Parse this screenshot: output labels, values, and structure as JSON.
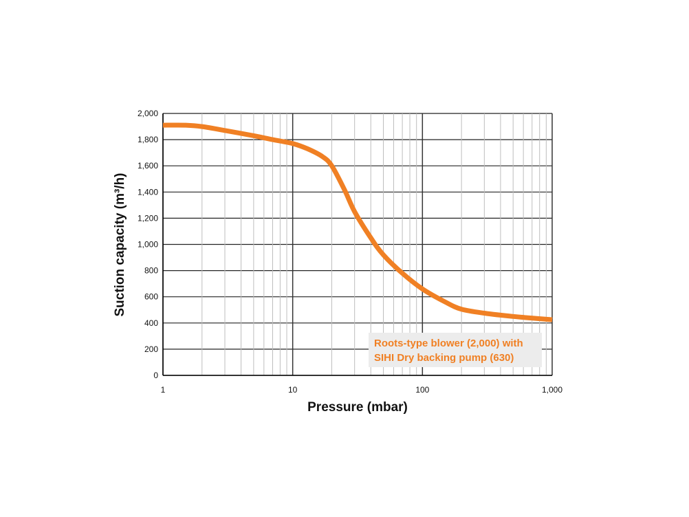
{
  "chart_data": {
    "type": "line",
    "title": "",
    "xlabel": "Pressure (mbar)",
    "ylabel": "Suction capacity (m³/h)",
    "x_scale": "log",
    "xlim": [
      1,
      1000
    ],
    "ylim": [
      0,
      2000
    ],
    "x_ticks": [
      {
        "value": 1,
        "label": "1"
      },
      {
        "value": 10,
        "label": "10"
      },
      {
        "value": 100,
        "label": "100"
      },
      {
        "value": 1000,
        "label": "1,000"
      }
    ],
    "y_ticks": [
      {
        "value": 0,
        "label": "0"
      },
      {
        "value": 200,
        "label": "200"
      },
      {
        "value": 400,
        "label": "400"
      },
      {
        "value": 600,
        "label": "600"
      },
      {
        "value": 800,
        "label": "800"
      },
      {
        "value": 1000,
        "label": "1,000"
      },
      {
        "value": 1200,
        "label": "1,200"
      },
      {
        "value": 1400,
        "label": "1,400"
      },
      {
        "value": 1600,
        "label": "1,600"
      },
      {
        "value": 1800,
        "label": "1,800"
      },
      {
        "value": 2000,
        "label": "2,000"
      }
    ],
    "grid": true,
    "legend_position": "bottom-right",
    "series": [
      {
        "name": "Roots-type blower (2,000) with SIHI Dry backing pump (630)",
        "legend_lines": [
          "Roots-type blower (2,000) with",
          "SIHI Dry backing pump (630)"
        ],
        "color": "#F08024",
        "points": [
          {
            "x": 1,
            "y": 1910
          },
          {
            "x": 1.5,
            "y": 1910
          },
          {
            "x": 2,
            "y": 1900
          },
          {
            "x": 3,
            "y": 1870
          },
          {
            "x": 5,
            "y": 1830
          },
          {
            "x": 7,
            "y": 1800
          },
          {
            "x": 10,
            "y": 1770
          },
          {
            "x": 13,
            "y": 1730
          },
          {
            "x": 17,
            "y": 1670
          },
          {
            "x": 20,
            "y": 1600
          },
          {
            "x": 25,
            "y": 1420
          },
          {
            "x": 30,
            "y": 1250
          },
          {
            "x": 40,
            "y": 1050
          },
          {
            "x": 50,
            "y": 920
          },
          {
            "x": 70,
            "y": 780
          },
          {
            "x": 100,
            "y": 660
          },
          {
            "x": 150,
            "y": 560
          },
          {
            "x": 200,
            "y": 505
          },
          {
            "x": 300,
            "y": 475
          },
          {
            "x": 500,
            "y": 450
          },
          {
            "x": 1000,
            "y": 425
          }
        ]
      }
    ]
  },
  "colors": {
    "gridline": "#bdbdbd",
    "major_gridline": "#333333",
    "legend_box": "#ececec"
  }
}
